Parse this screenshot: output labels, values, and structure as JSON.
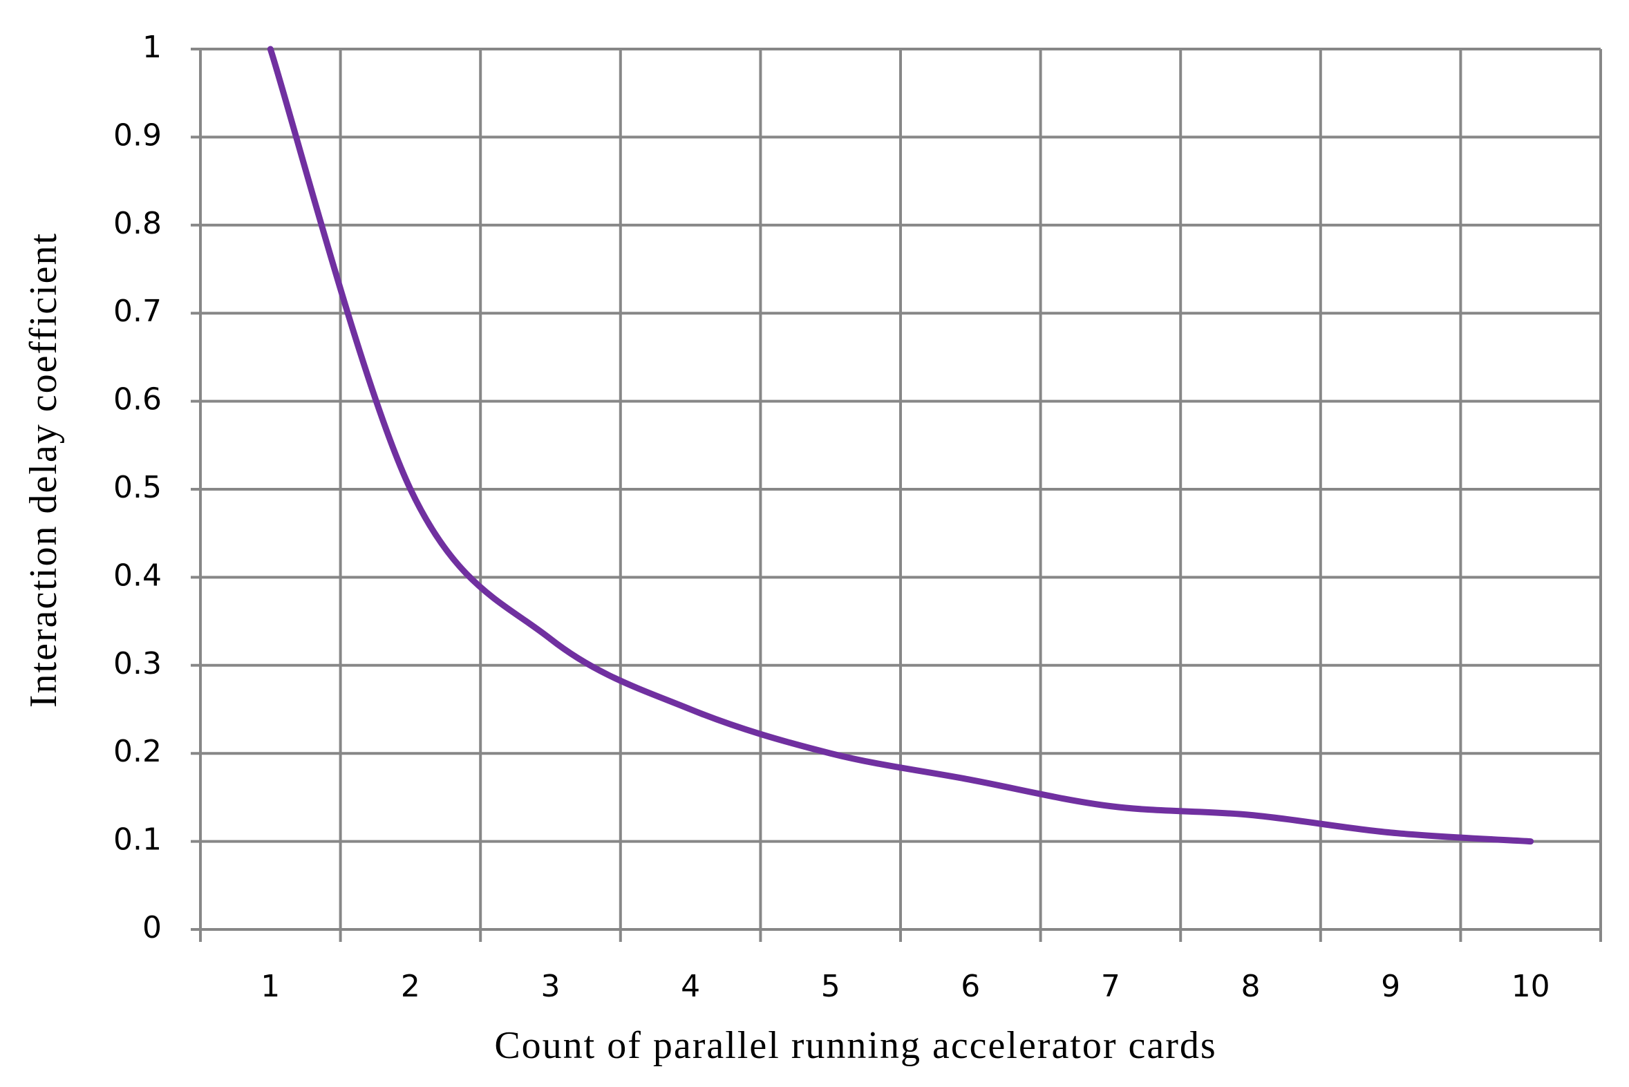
{
  "chart_data": {
    "type": "line",
    "x_label": "Count of parallel running accelerator cards",
    "y_label": "Interaction delay  coefficient",
    "categories": [
      "1",
      "2",
      "3",
      "4",
      "5",
      "6",
      "7",
      "8",
      "9",
      "10"
    ],
    "series": [
      {
        "color": "#7030a0",
        "values": [
          1,
          0.5,
          0.33,
          0.25,
          0.2,
          0.17,
          0.14,
          0.13,
          0.11,
          0.1
        ]
      }
    ],
    "ylim": [
      0,
      1
    ],
    "yticks": [
      0,
      0.1,
      0.2,
      0.3,
      0.4,
      0.5,
      0.6,
      0.7,
      0.8,
      0.9,
      1
    ],
    "grid": true,
    "smooth": true
  }
}
